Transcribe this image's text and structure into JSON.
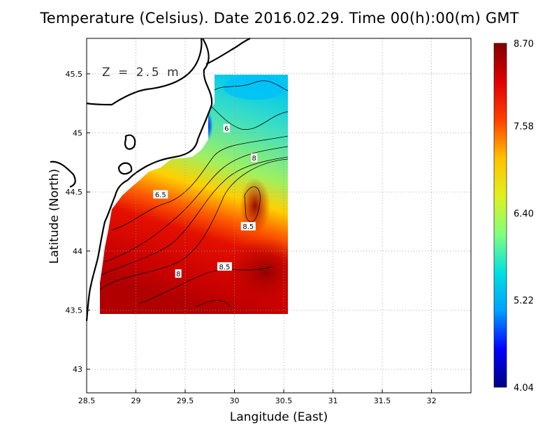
{
  "chart_data": {
    "type": "heatmap",
    "title": "Temperature (Celsius). Date 2016.02.29. Time 00(h):00(m)  GMT",
    "xlabel": "Langitude (East)",
    "ylabel": "Latitude (North)",
    "annotation": "Z = 2.5 m",
    "xlim": [
      28.5,
      32.4
    ],
    "ylim": [
      42.8,
      45.8
    ],
    "x_ticks": [
      28.5,
      29,
      29.5,
      30,
      30.5,
      31,
      31.5,
      32
    ],
    "x_tick_labels": [
      "28.5",
      "29",
      "29.5",
      "30",
      "30.5",
      "31",
      "31.5",
      "32"
    ],
    "y_ticks": [
      43,
      43.5,
      44,
      44.5,
      45,
      45.5
    ],
    "y_tick_labels": [
      "43",
      "43.5",
      "44",
      "44.5",
      "45",
      "45.5"
    ],
    "grid": true,
    "colorbar": {
      "min": 4.04,
      "max": 8.7,
      "tick_values": [
        8.7,
        7.58,
        6.4,
        5.22,
        4.04
      ],
      "tick_labels": [
        "8.70",
        "7.58",
        "6.40",
        "5.22",
        "4.04"
      ],
      "colors": [
        "#000080",
        "#0000ff",
        "#00a0ff",
        "#00e0e0",
        "#80ff80",
        "#e0f020",
        "#ffc000",
        "#ff4000",
        "#e00000",
        "#800000"
      ]
    },
    "contour_labels": [
      {
        "text": "6",
        "lon": 29.92,
        "lat": 45.04
      },
      {
        "text": "8",
        "lon": 30.2,
        "lat": 44.79
      },
      {
        "text": "6.5",
        "lon": 29.25,
        "lat": 44.48
      },
      {
        "text": "8.5",
        "lon": 30.14,
        "lat": 44.21
      },
      {
        "text": "8.5",
        "lon": 29.9,
        "lat": 43.87
      },
      {
        "text": "8",
        "lon": 29.43,
        "lat": 43.81
      }
    ]
  }
}
